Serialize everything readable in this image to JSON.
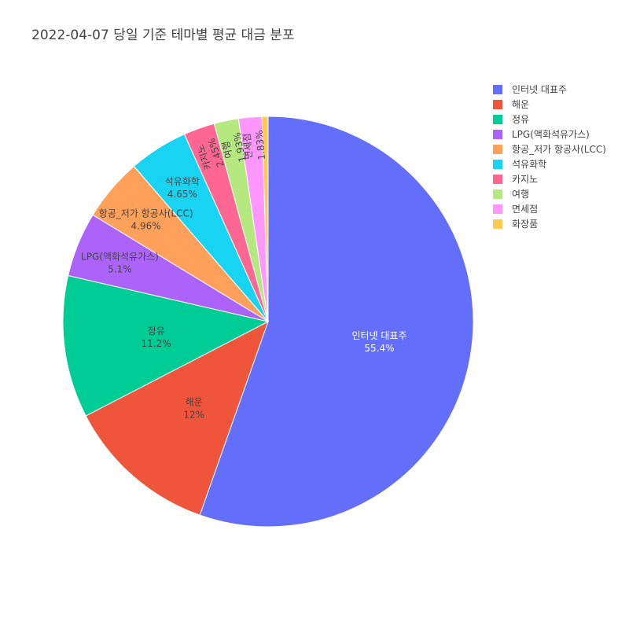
{
  "chart_data": {
    "type": "pie",
    "title": "2022-04-07 당일 기준 테마별 평균 대금 분포",
    "legend_position": "top-right",
    "sort": "descending",
    "direction": "clockwise",
    "start_angle_deg": 0,
    "categories": [
      "인터넷 대표주",
      "해운",
      "정유",
      "LPG(액화석유가스)",
      "항공_저가 항공사(LCC)",
      "석유화학",
      "카지노",
      "여행",
      "면세점",
      "화장품"
    ],
    "values": [
      55.4,
      12.0,
      11.2,
      5.1,
      4.96,
      4.65,
      2.45,
      1.93,
      1.83,
      0.48
    ],
    "labels": [
      "55.4%",
      "12%",
      "11.2%",
      "5.1%",
      "4.96%",
      "4.65%",
      "2.45%",
      "1.93%",
      "1.83%",
      ""
    ],
    "colors": [
      "#636efa",
      "#EF553B",
      "#00cc96",
      "#ab63fa",
      "#FFA15A",
      "#19d3f3",
      "#FF6692",
      "#B6E880",
      "#FF97FF",
      "#FECB52"
    ]
  }
}
